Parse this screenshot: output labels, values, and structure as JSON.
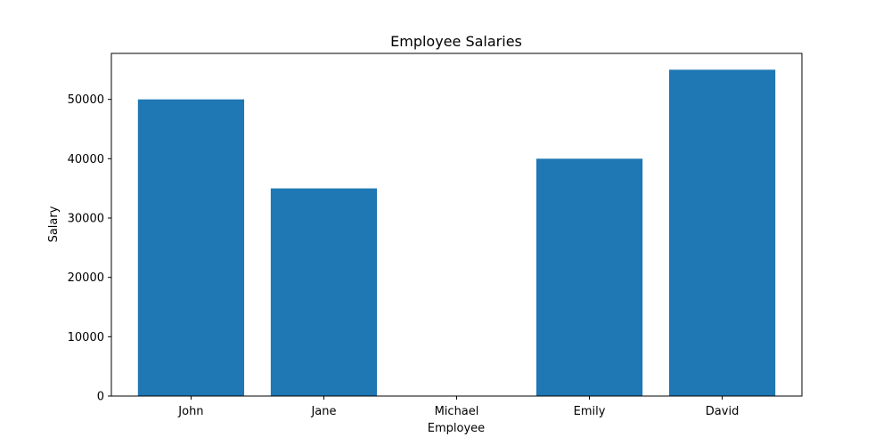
{
  "chart_data": {
    "type": "bar",
    "title": "Employee Salaries",
    "xlabel": "Employee",
    "ylabel": "Salary",
    "categories": [
      "John",
      "Jane",
      "Michael",
      "Emily",
      "David"
    ],
    "values": [
      50000,
      35000,
      0,
      40000,
      55000
    ],
    "ylim": [
      0,
      57750
    ],
    "yticks": [
      0,
      10000,
      20000,
      30000,
      40000,
      50000
    ],
    "grid": false,
    "legend": "none",
    "bar_color": "#1f77b4"
  }
}
